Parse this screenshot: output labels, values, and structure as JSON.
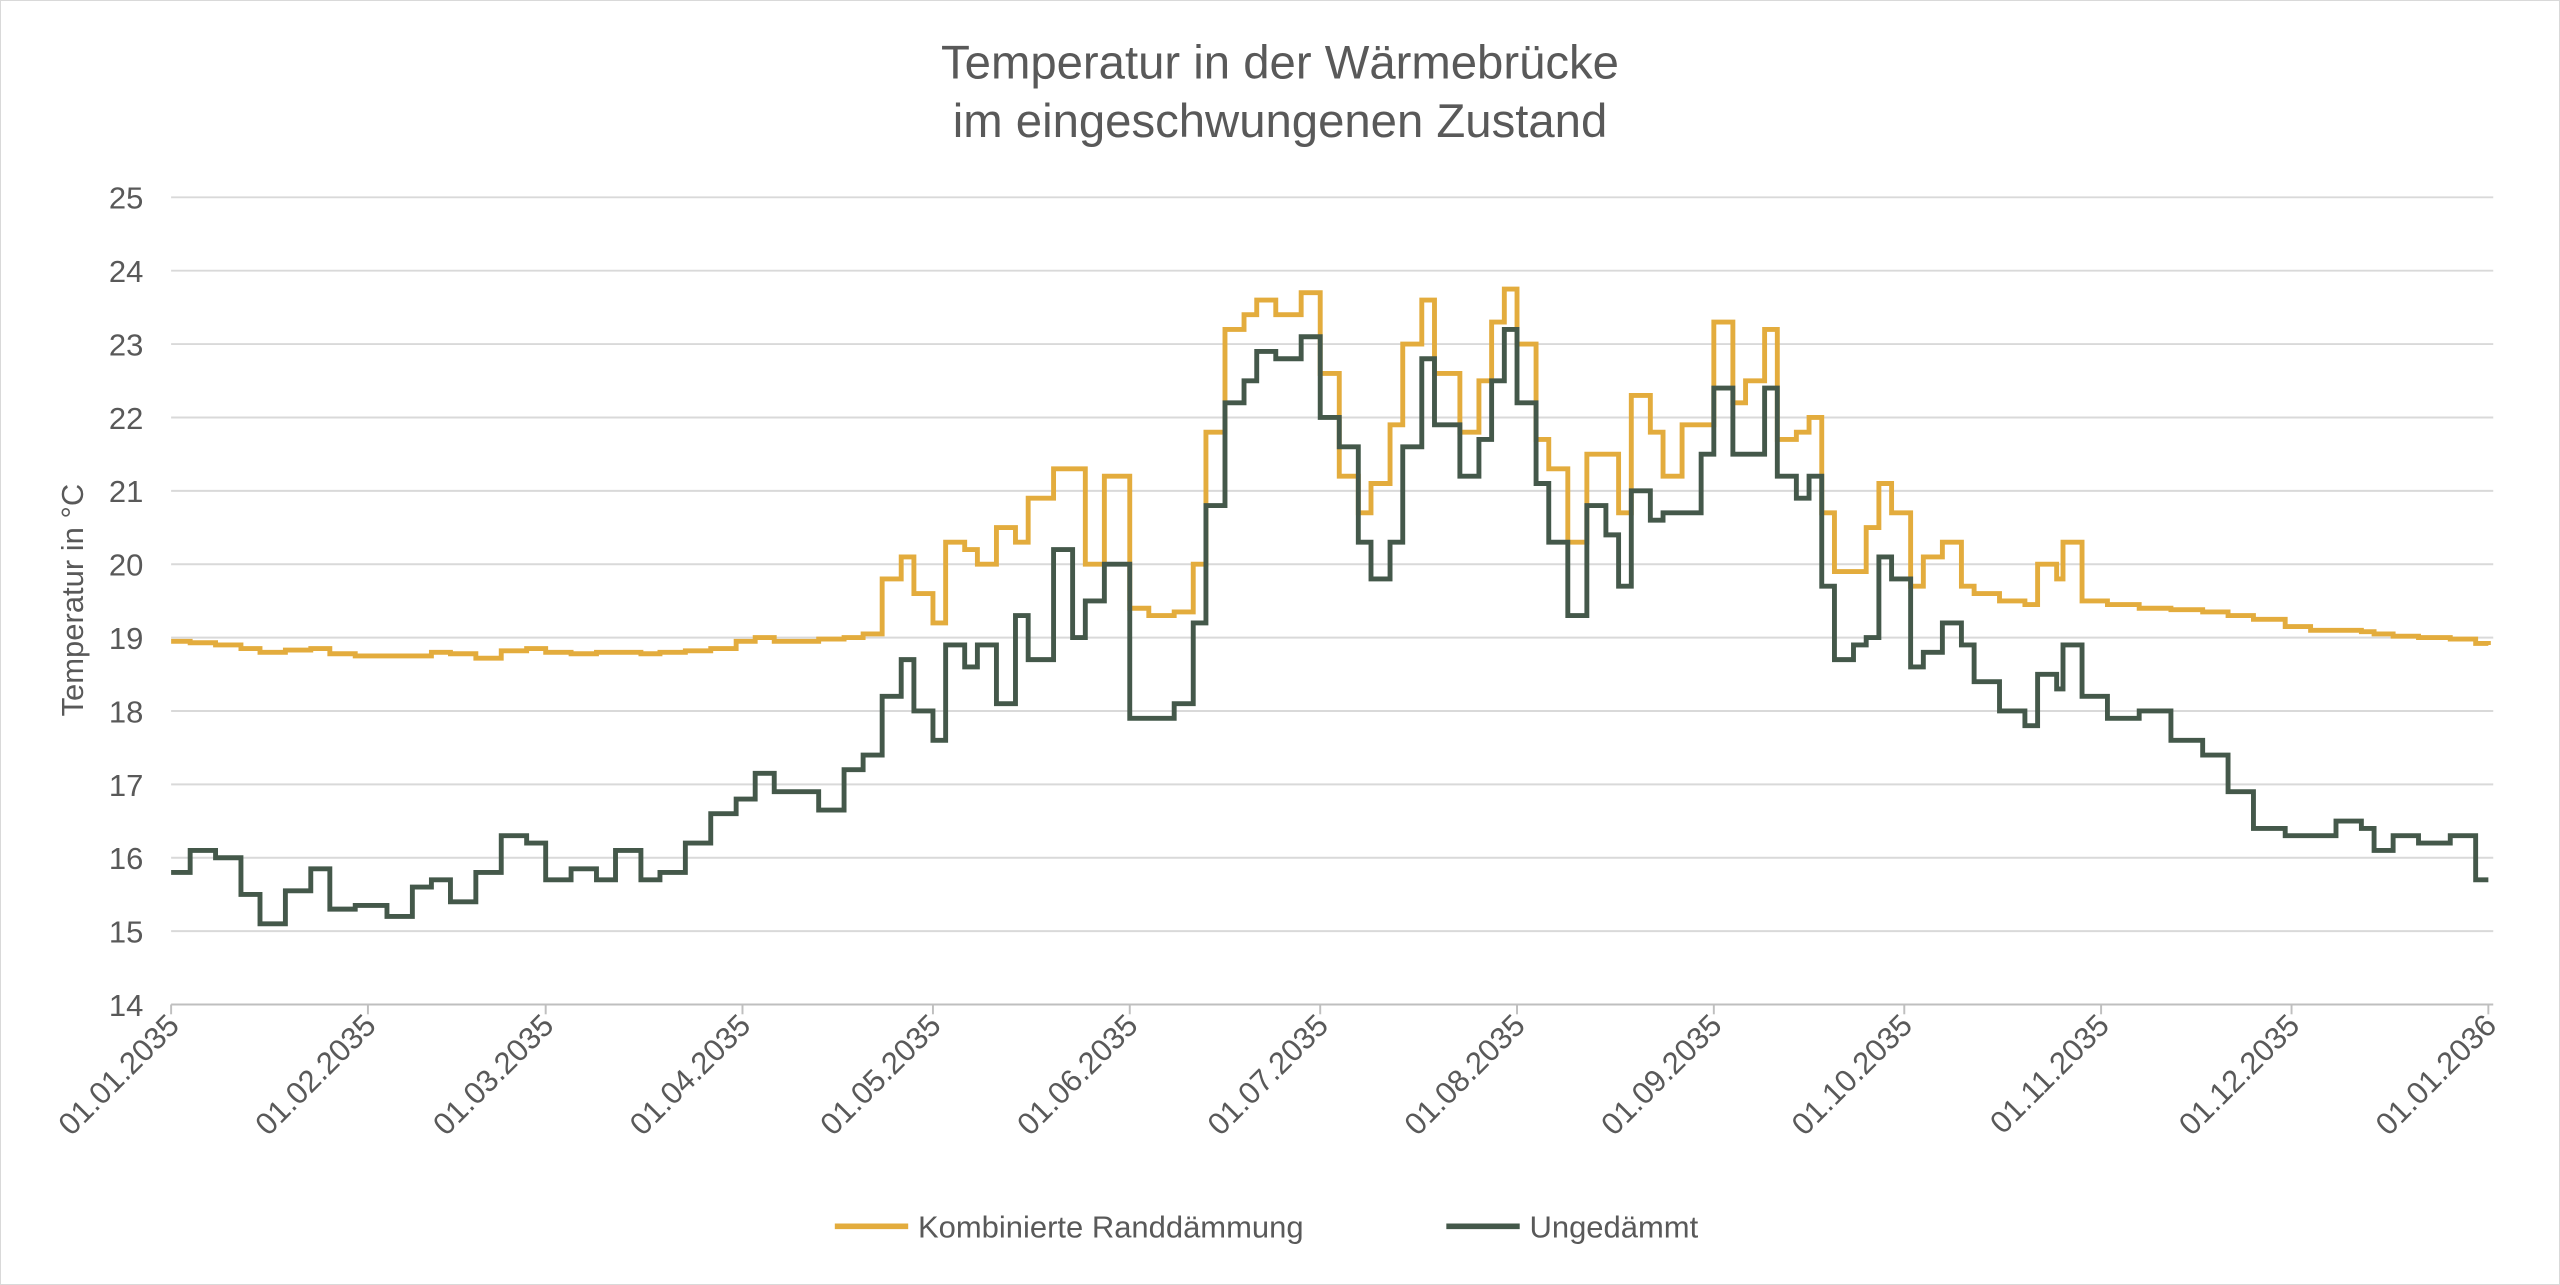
{
  "chart_data": {
    "type": "line",
    "title": [
      "Temperatur  in der Wärmebrücke",
      "im eingeschwungenen Zustand"
    ],
    "xlabel": "",
    "ylabel": "Temperatur in °C",
    "ylim": [
      14,
      25
    ],
    "yticks": [
      14,
      15,
      16,
      17,
      18,
      19,
      20,
      21,
      22,
      23,
      24,
      25
    ],
    "xlim": [
      0,
      365
    ],
    "x_unit": "day of year 2035",
    "xticks": [
      {
        "day": 0,
        "label": "01.01.2035"
      },
      {
        "day": 31,
        "label": "01.02.2035"
      },
      {
        "day": 59,
        "label": "01.03.2035"
      },
      {
        "day": 90,
        "label": "01.04.2035"
      },
      {
        "day": 120,
        "label": "01.05.2035"
      },
      {
        "day": 151,
        "label": "01.06.2035"
      },
      {
        "day": 181,
        "label": "01.07.2035"
      },
      {
        "day": 212,
        "label": "01.08.2035"
      },
      {
        "day": 243,
        "label": "01.09.2035"
      },
      {
        "day": 273,
        "label": "01.10.2035"
      },
      {
        "day": 304,
        "label": "01.11.2035"
      },
      {
        "day": 334,
        "label": "01.12.2035"
      },
      {
        "day": 365,
        "label": "01.01.2036"
      }
    ],
    "grid": true,
    "legend_position": "bottom",
    "x": [
      0,
      3,
      7,
      11,
      14,
      18,
      22,
      25,
      29,
      34,
      38,
      41,
      44,
      48,
      52,
      56,
      59,
      63,
      67,
      70,
      74,
      77,
      81,
      85,
      89,
      92,
      95,
      99,
      102,
      106,
      109,
      112,
      115,
      117,
      120,
      122,
      125,
      127,
      130,
      133,
      135,
      139,
      142,
      144,
      147,
      151,
      154,
      158,
      161,
      163,
      166,
      169,
      171,
      174,
      178,
      181,
      184,
      187,
      189,
      192,
      194,
      197,
      199,
      203,
      206,
      208,
      210,
      212,
      215,
      217,
      220,
      223,
      226,
      228,
      230,
      233,
      235,
      238,
      241,
      243,
      246,
      248,
      251,
      253,
      256,
      258,
      260,
      262,
      265,
      267,
      269,
      271,
      274,
      276,
      279,
      282,
      284,
      288,
      292,
      294,
      297,
      298,
      301,
      305,
      310,
      315,
      320,
      324,
      328,
      333,
      337,
      341,
      345,
      347,
      350,
      354,
      359,
      363,
      365
    ],
    "series": [
      {
        "name": "Kombinierte Randdämmung",
        "color": "#E3AC3D",
        "values": [
          18.95,
          18.93,
          18.9,
          18.85,
          18.8,
          18.83,
          18.85,
          18.78,
          18.75,
          18.75,
          18.75,
          18.8,
          18.78,
          18.72,
          18.82,
          18.85,
          18.8,
          18.78,
          18.8,
          18.8,
          18.78,
          18.8,
          18.82,
          18.85,
          18.95,
          19.0,
          18.95,
          18.95,
          18.98,
          19.0,
          19.05,
          19.8,
          20.1,
          19.6,
          19.2,
          20.3,
          20.2,
          20.0,
          20.5,
          20.3,
          20.9,
          21.3,
          21.3,
          20.0,
          21.2,
          19.4,
          19.3,
          19.35,
          20.0,
          21.8,
          23.2,
          23.4,
          23.6,
          23.4,
          23.7,
          22.6,
          21.2,
          20.7,
          21.1,
          21.9,
          23.0,
          23.6,
          22.6,
          21.8,
          22.5,
          23.3,
          23.75,
          23.0,
          21.7,
          21.3,
          20.3,
          21.5,
          21.5,
          20.7,
          22.3,
          21.8,
          21.2,
          21.9,
          21.9,
          23.3,
          22.2,
          22.5,
          23.2,
          21.7,
          21.8,
          22.0,
          20.7,
          19.9,
          19.9,
          20.5,
          21.1,
          20.7,
          19.7,
          20.1,
          20.3,
          19.7,
          19.6,
          19.5,
          19.45,
          20.0,
          19.8,
          20.3,
          19.5,
          19.45,
          19.4,
          19.38,
          19.35,
          19.3,
          19.25,
          19.15,
          19.1,
          19.1,
          19.08,
          19.05,
          19.02,
          19.0,
          18.98,
          18.92,
          18.9
        ]
      },
      {
        "name": "Ungedämmt",
        "color": "#44584A",
        "values": [
          15.8,
          16.1,
          16.0,
          15.5,
          15.1,
          15.55,
          15.85,
          15.3,
          15.35,
          15.2,
          15.6,
          15.7,
          15.4,
          15.8,
          16.3,
          16.2,
          15.7,
          15.85,
          15.7,
          16.1,
          15.7,
          15.8,
          16.2,
          16.6,
          16.8,
          17.15,
          16.9,
          16.9,
          16.65,
          17.2,
          17.4,
          18.2,
          18.7,
          18.0,
          17.6,
          18.9,
          18.6,
          18.9,
          18.1,
          19.3,
          18.7,
          20.2,
          19.0,
          19.5,
          20.0,
          17.9,
          17.9,
          18.1,
          19.2,
          20.8,
          22.2,
          22.5,
          22.9,
          22.8,
          23.1,
          22.0,
          21.6,
          20.3,
          19.8,
          20.3,
          21.6,
          22.8,
          21.9,
          21.2,
          21.7,
          22.5,
          23.2,
          22.2,
          21.1,
          20.3,
          19.3,
          20.8,
          20.4,
          19.7,
          21.0,
          20.6,
          20.7,
          20.7,
          21.5,
          22.4,
          21.5,
          21.5,
          22.4,
          21.2,
          20.9,
          21.2,
          19.7,
          18.7,
          18.9,
          19.0,
          20.1,
          19.8,
          18.6,
          18.8,
          19.2,
          18.9,
          18.4,
          18.0,
          17.8,
          18.5,
          18.3,
          18.9,
          18.2,
          17.9,
          18.0,
          17.6,
          17.4,
          16.9,
          16.4,
          16.3,
          16.3,
          16.5,
          16.4,
          16.1,
          16.3,
          16.2,
          16.3,
          15.7,
          15.7
        ]
      }
    ]
  }
}
